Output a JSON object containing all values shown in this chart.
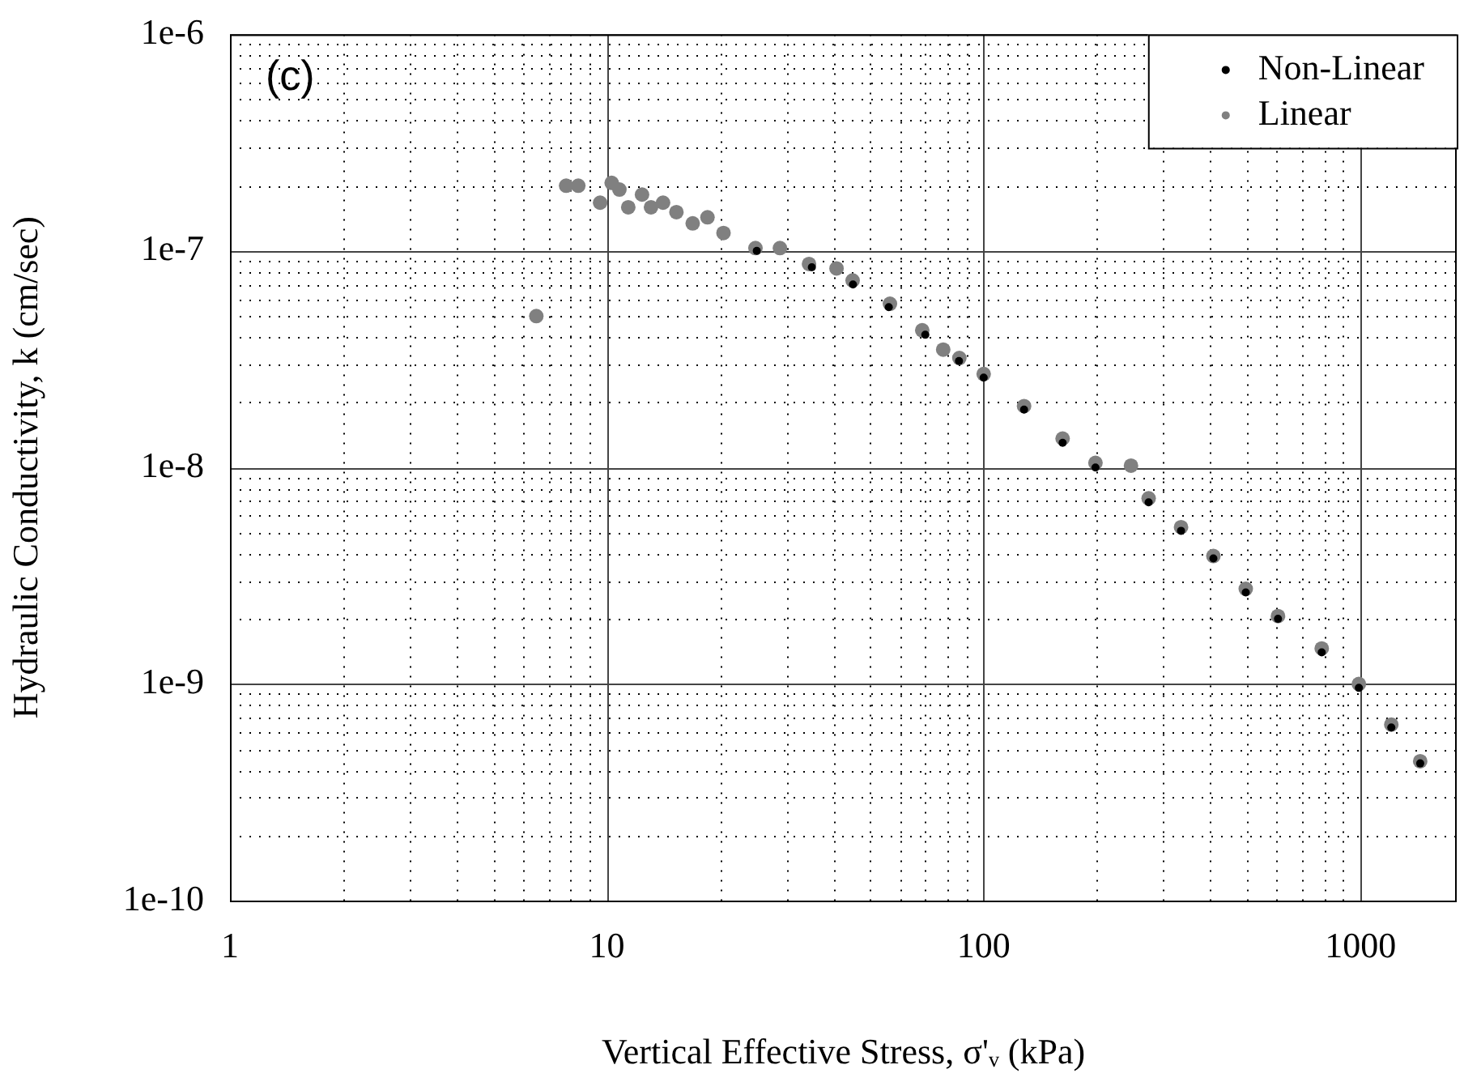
{
  "chart_data": {
    "type": "scatter",
    "xlabel": "Vertical Effective Stress, σ'ᵥ (kPa)",
    "ylabel": "Hydraulic Conductivity, k (cm/sec)",
    "annotations": [
      "(c)"
    ],
    "log": "xy",
    "grid": true,
    "legend": "top right",
    "marker": "circle",
    "xlim": [
      1,
      1800
    ],
    "ylim": [
      1e-10,
      1e-06
    ],
    "xticks": [
      1,
      {
        "value": 2,
        "label": null
      },
      {
        "value": 3,
        "label": null
      },
      {
        "value": 4,
        "label": null
      },
      {
        "value": 5,
        "label": null
      },
      {
        "value": 6,
        "label": null
      },
      {
        "value": 7,
        "label": null
      },
      {
        "value": 8,
        "label": null
      },
      {
        "value": 9,
        "label": null
      },
      10,
      {
        "value": 20,
        "label": null
      },
      {
        "value": 30,
        "label": null
      },
      {
        "value": 40,
        "label": null
      },
      {
        "value": 50,
        "label": null
      },
      {
        "value": 60,
        "label": null
      },
      {
        "value": 70,
        "label": null
      },
      {
        "value": 80,
        "label": null
      },
      {
        "value": 90,
        "label": null
      },
      100,
      {
        "value": 200,
        "label": null
      },
      {
        "value": 300,
        "label": null
      },
      {
        "value": 400,
        "label": null
      },
      {
        "value": 500,
        "label": null
      },
      {
        "value": 600,
        "label": null
      },
      {
        "value": 700,
        "label": null
      },
      {
        "value": 800,
        "label": null
      },
      {
        "value": 900,
        "label": null
      },
      1000
    ],
    "yticks": [
      {
        "value": 1e-10,
        "label": "1e-10"
      },
      {
        "value": 2e-10,
        "label": null
      },
      {
        "value": 3e-10,
        "label": null
      },
      {
        "value": 4e-10,
        "label": null
      },
      {
        "value": 5e-10,
        "label": null
      },
      {
        "value": 6e-10,
        "label": null
      },
      {
        "value": 7e-10,
        "label": null
      },
      {
        "value": 8e-10,
        "label": null
      },
      {
        "value": 9e-10,
        "label": null
      },
      {
        "value": 1e-09,
        "label": "1e-9"
      },
      {
        "value": 2e-09,
        "label": null
      },
      {
        "value": 3e-09,
        "label": null
      },
      {
        "value": 4e-09,
        "label": null
      },
      {
        "value": 5e-09,
        "label": null
      },
      {
        "value": 6e-09,
        "label": null
      },
      {
        "value": 7e-09,
        "label": null
      },
      {
        "value": 8e-09,
        "label": null
      },
      {
        "value": 9e-09,
        "label": null
      },
      {
        "value": 1e-08,
        "label": "1e-8"
      },
      {
        "value": 2e-08,
        "label": null
      },
      {
        "value": 3e-08,
        "label": null
      },
      {
        "value": 4e-08,
        "label": null
      },
      {
        "value": 5e-08,
        "label": null
      },
      {
        "value": 6e-08,
        "label": null
      },
      {
        "value": 7e-08,
        "label": null
      },
      {
        "value": 8e-08,
        "label": null
      },
      {
        "value": 9e-08,
        "label": null
      },
      {
        "value": 1e-07,
        "label": "1e-7"
      },
      {
        "value": 2e-07,
        "label": null
      },
      {
        "value": 3e-07,
        "label": null
      },
      {
        "value": 4e-07,
        "label": null
      },
      {
        "value": 5e-07,
        "label": null
      },
      {
        "value": 6e-07,
        "label": null
      },
      {
        "value": 7e-07,
        "label": null
      },
      {
        "value": 8e-07,
        "label": null
      },
      {
        "value": 9e-07,
        "label": null
      },
      {
        "value": 1e-06,
        "label": "1e-6"
      }
    ],
    "series": [
      {
        "name": "Non-Linear",
        "color": "#000000",
        "x": [
          25,
          35,
          45,
          56,
          70,
          86,
          100,
          128,
          162,
          198,
          274,
          334,
          407,
          496,
          604,
          789,
          990,
          1207,
          1440
        ],
        "values": [
          1e-07,
          8.4e-08,
          7e-08,
          5.5e-08,
          4.1e-08,
          3.1e-08,
          2.6e-08,
          1.85e-08,
          1.3e-08,
          1e-08,
          6.9e-09,
          5.1e-09,
          3.8e-09,
          2.65e-09,
          2e-09,
          1.4e-09,
          9.6e-10,
          6.3e-10,
          4.3e-10
        ]
      },
      {
        "name": "Linear",
        "color": "#808080",
        "x": [
          6.5,
          7.8,
          8.4,
          9.6,
          10.3,
          10.8,
          11.4,
          12.4,
          13.1,
          14.1,
          15.3,
          16.9,
          18.5,
          20.4,
          24.8,
          28.8,
          34.4,
          40.7,
          44.9,
          56.4,
          68.7,
          78.1,
          86.2,
          100,
          128,
          162,
          198,
          246,
          274,
          334,
          407,
          496,
          604,
          789,
          990,
          1207,
          1440
        ],
        "values": [
          5e-08,
          2e-07,
          2e-07,
          1.67e-07,
          2.06e-07,
          1.92e-07,
          1.59e-07,
          1.82e-07,
          1.59e-07,
          1.67e-07,
          1.51e-07,
          1.34e-07,
          1.43e-07,
          1.21e-07,
          1.03e-07,
          1.03e-07,
          8.7e-08,
          8.3e-08,
          7.3e-08,
          5.7e-08,
          4.3e-08,
          3.5e-08,
          3.2e-08,
          2.7e-08,
          1.92e-08,
          1.36e-08,
          1.05e-08,
          1.02e-08,
          7.2e-09,
          5.3e-09,
          3.9e-09,
          2.75e-09,
          2.06e-09,
          1.46e-09,
          1e-09,
          6.5e-10,
          4.4e-10
        ]
      }
    ]
  }
}
